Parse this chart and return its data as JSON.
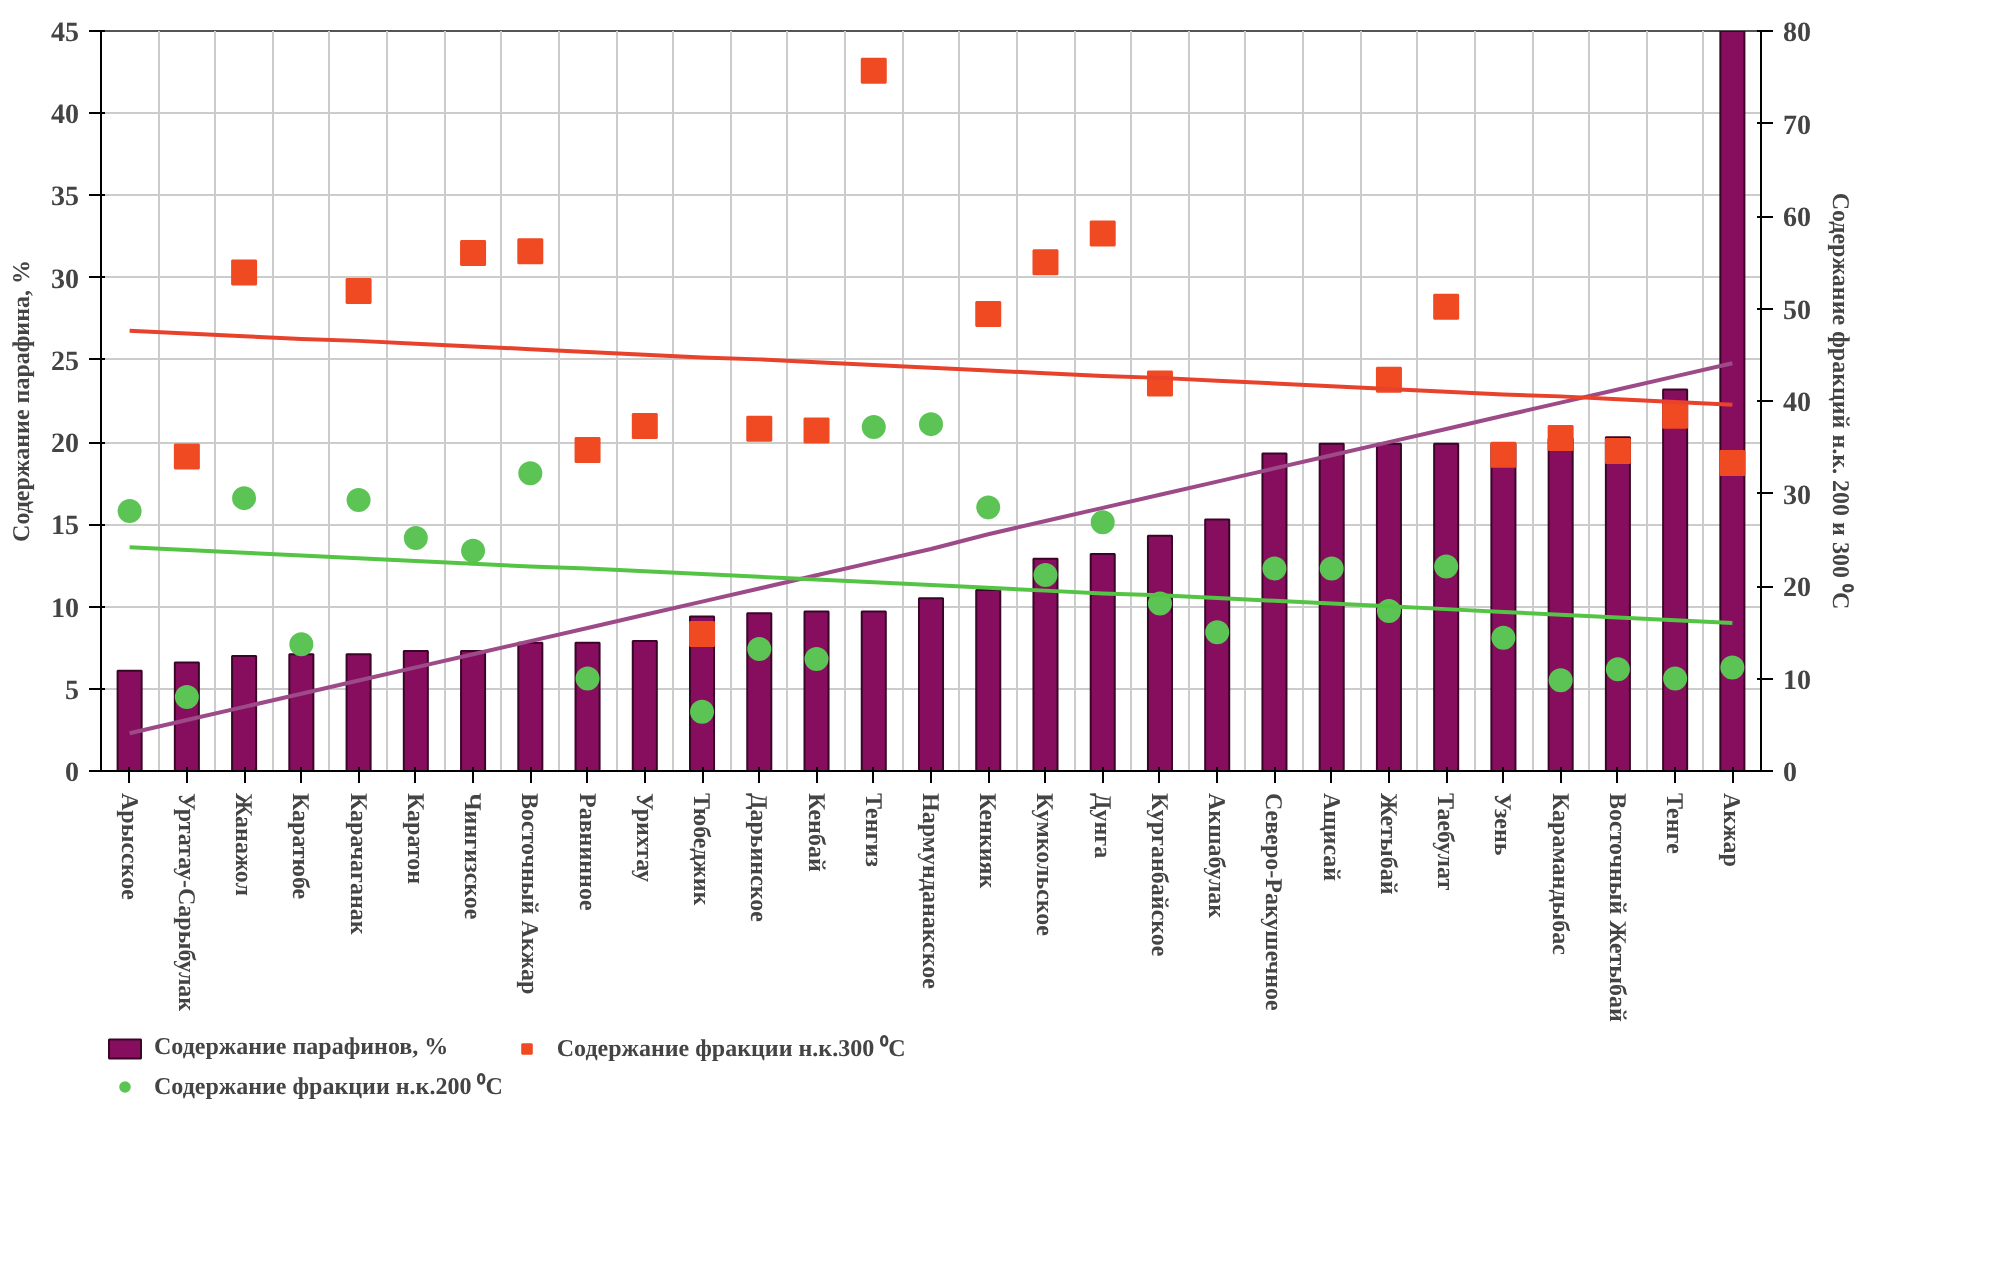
{
  "chart_data": {
    "type": "bar",
    "ylabel": "Содержание парафина, %",
    "y2label": "Содержание фракций н.к. 200 и 300 ⁰C",
    "categories": [
      "Арысское",
      "Уртатау-Сарыбулак",
      "Жанажол",
      "Каратюбе",
      "Карачаганак",
      "Каратон",
      "Чингизское",
      "Восточный Акжар",
      "Равнинное",
      "Урихтау",
      "Тюбеджик",
      "Дарьинское",
      "Кенбай",
      "Тенгиз",
      "Нармунданакское",
      "Кенкияк",
      "Кумкольское",
      "Дунга",
      "Курганбайское",
      "Акшабулак",
      "Северо-Ракушечное",
      "Ащисай",
      "Жетыбай",
      "Таебулат",
      "Узень",
      "Карамандыбас",
      "Восточный Жетыбай",
      "Тенге",
      "Акжар"
    ],
    "ylim": [
      0,
      45
    ],
    "yticks": [
      0,
      5,
      10,
      15,
      20,
      25,
      30,
      35,
      40,
      45
    ],
    "y2lim": [
      0,
      80
    ],
    "y2ticks": [
      0,
      10,
      20,
      30,
      40,
      50,
      60,
      70,
      80
    ],
    "grid": true,
    "legend": "bottom left",
    "series": [
      {
        "name": "Содержание парафинов, %",
        "color": "#870e5f",
        "values": [
          6.1,
          6.6,
          7.0,
          7.1,
          7.1,
          7.3,
          7.3,
          7.8,
          7.8,
          7.9,
          9.4,
          9.6,
          9.7,
          9.7,
          10.5,
          11.0,
          12.9,
          13.2,
          14.3,
          15.3,
          19.3,
          19.9,
          19.9,
          19.9,
          19.9,
          20.2,
          20.3,
          23.2,
          45
        ]
      },
      {
        "type": "scatter",
        "axis": "y2",
        "marker": "square",
        "name": "Содержание фракции н.к.300 ⁰C",
        "color": "#f04a23",
        "values": [
          null,
          34.0,
          53.9,
          null,
          51.9,
          null,
          56.0,
          56.2,
          34.7,
          37.3,
          14.8,
          37.0,
          36.8,
          75.7,
          null,
          49.4,
          55.0,
          58.1,
          41.9,
          null,
          null,
          null,
          42.3,
          50.2,
          34.2,
          36.0,
          34.6,
          38.4,
          33.3
        ]
      },
      {
        "type": "scatter",
        "axis": "y2",
        "marker": "circle",
        "name": "Содержание фракции н.к.200 ⁰C",
        "color": "#5cc454",
        "values": [
          28.1,
          8.0,
          29.5,
          13.7,
          29.3,
          25.2,
          23.8,
          32.2,
          10.0,
          null,
          6.4,
          13.2,
          12.1,
          37.2,
          37.5,
          28.5,
          21.2,
          26.9,
          18.1,
          15.0,
          21.9,
          21.9,
          17.3,
          22.1,
          14.4,
          9.8,
          11.0,
          10.0,
          11.2
        ]
      },
      {
        "type": "line",
        "color": "#9c4a88",
        "values": [
          2.3,
          3.1,
          3.9,
          4.7,
          5.5,
          6.3,
          7.1,
          7.9,
          8.7,
          9.5,
          10.3,
          11.1,
          11.9,
          12.7,
          13.5,
          14.4,
          15.2,
          16.0,
          16.8,
          17.6,
          18.4,
          19.2,
          20.0,
          20.8,
          21.6,
          22.4,
          23.2,
          24.0,
          24.8
        ]
      },
      {
        "type": "line",
        "axis": "y2",
        "color": "#e8412c",
        "values": [
          47.6,
          47.3,
          47.0,
          46.7,
          46.5,
          46.2,
          45.9,
          45.6,
          45.3,
          45.0,
          44.7,
          44.5,
          44.2,
          43.9,
          43.6,
          43.3,
          43.0,
          42.7,
          42.5,
          42.2,
          41.9,
          41.6,
          41.3,
          41.0,
          40.7,
          40.5,
          40.2,
          39.9,
          39.6
        ]
      },
      {
        "type": "line",
        "axis": "y2",
        "color": "#54c444",
        "values": [
          24.2,
          23.9,
          23.6,
          23.3,
          23.0,
          22.7,
          22.4,
          22.1,
          21.9,
          21.6,
          21.3,
          21.0,
          20.7,
          20.4,
          20.1,
          19.8,
          19.5,
          19.2,
          19.0,
          18.7,
          18.4,
          18.1,
          17.8,
          17.5,
          17.2,
          16.9,
          16.6,
          16.3,
          16.0
        ]
      }
    ]
  }
}
